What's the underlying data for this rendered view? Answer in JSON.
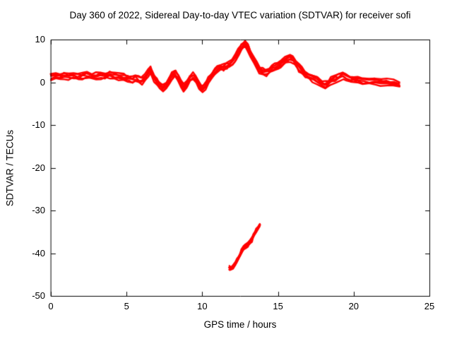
{
  "page": {
    "background": "#ffffff"
  },
  "chart_data": {
    "type": "scatter",
    "title": "Day 360 of 2022, Sidereal Day-to-day VTEC variation (SDTVAR) for receiver sofi",
    "xlabel": "GPS time / hours",
    "ylabel": "SDTVAR / TECUs",
    "xlim": [
      0,
      25
    ],
    "ylim": [
      -50,
      10
    ],
    "x_ticks": [
      0,
      5,
      10,
      15,
      20,
      25
    ],
    "y_ticks": [
      -50,
      -40,
      -30,
      -20,
      -10,
      0,
      10
    ],
    "grid": false,
    "legend": "none",
    "series_color": "#ff0000",
    "series": [
      {
        "name": "main-vtec-variation-band",
        "spread": 1.4,
        "points": [
          [
            0,
            1.2
          ],
          [
            0.3,
            1.5
          ],
          [
            0.6,
            1.3
          ],
          [
            0.9,
            1.6
          ],
          [
            1.2,
            1.4
          ],
          [
            1.5,
            1.6
          ],
          [
            1.8,
            1.3
          ],
          [
            2.1,
            1.5
          ],
          [
            2.4,
            1.7
          ],
          [
            2.7,
            1.4
          ],
          [
            3.0,
            1.5
          ],
          [
            3.3,
            1.7
          ],
          [
            3.6,
            1.6
          ],
          [
            3.9,
            1.8
          ],
          [
            4.2,
            1.5
          ],
          [
            4.5,
            1.3
          ],
          [
            4.8,
            1.1
          ],
          [
            5.1,
            0.8
          ],
          [
            5.4,
            0.6
          ],
          [
            5.6,
            1.0
          ],
          [
            5.8,
            0.5
          ],
          [
            6.0,
            0.3
          ],
          [
            6.2,
            1.2
          ],
          [
            6.4,
            2.2
          ],
          [
            6.55,
            3.0
          ],
          [
            6.7,
            2.2
          ],
          [
            6.85,
            1.0
          ],
          [
            7.0,
            0.2
          ],
          [
            7.2,
            -0.8
          ],
          [
            7.4,
            -1.5
          ],
          [
            7.6,
            -0.8
          ],
          [
            7.8,
            0.5
          ],
          [
            8.0,
            1.5
          ],
          [
            8.2,
            2.0
          ],
          [
            8.4,
            1.0
          ],
          [
            8.6,
            -0.3
          ],
          [
            8.8,
            -1.2
          ],
          [
            9.0,
            -0.5
          ],
          [
            9.2,
            0.8
          ],
          [
            9.4,
            1.5
          ],
          [
            9.6,
            0.6
          ],
          [
            9.8,
            -0.6
          ],
          [
            10.0,
            -1.6
          ],
          [
            10.2,
            -0.8
          ],
          [
            10.4,
            0.5
          ],
          [
            10.6,
            1.5
          ],
          [
            10.8,
            2.5
          ],
          [
            11.0,
            3.3
          ],
          [
            11.2,
            3.6
          ],
          [
            11.4,
            3.4
          ],
          [
            11.6,
            3.8
          ],
          [
            11.8,
            4.2
          ],
          [
            12.0,
            4.8
          ],
          [
            12.2,
            5.8
          ],
          [
            12.4,
            7.0
          ],
          [
            12.6,
            8.2
          ],
          [
            12.8,
            9.0
          ],
          [
            13.0,
            8.3
          ],
          [
            13.2,
            6.8
          ],
          [
            13.4,
            5.2
          ],
          [
            13.6,
            3.8
          ],
          [
            13.8,
            3.0
          ],
          [
            14.0,
            2.6
          ],
          [
            14.2,
            2.4
          ],
          [
            14.4,
            2.8
          ],
          [
            14.6,
            3.2
          ],
          [
            14.8,
            3.6
          ],
          [
            15.0,
            4.0
          ],
          [
            15.2,
            4.4
          ],
          [
            15.5,
            5.0
          ],
          [
            15.8,
            5.6
          ],
          [
            16.0,
            5.2
          ],
          [
            16.2,
            4.4
          ],
          [
            16.4,
            3.4
          ],
          [
            16.6,
            2.6
          ],
          [
            16.8,
            2.0
          ],
          [
            17.0,
            1.5
          ],
          [
            17.3,
            1.0
          ],
          [
            17.6,
            0.4
          ],
          [
            17.9,
            -0.2
          ],
          [
            18.1,
            -0.6
          ],
          [
            18.3,
            -0.2
          ],
          [
            18.5,
            0.4
          ],
          [
            18.8,
            0.9
          ],
          [
            19.0,
            1.2
          ],
          [
            19.3,
            1.6
          ],
          [
            19.5,
            1.2
          ],
          [
            19.8,
            0.8
          ],
          [
            20.0,
            0.6
          ],
          [
            20.3,
            0.5
          ],
          [
            20.6,
            0.4
          ],
          [
            21.0,
            0.3
          ],
          [
            21.4,
            0.2
          ],
          [
            21.8,
            0.1
          ],
          [
            22.2,
            -0.1
          ],
          [
            22.6,
            -0.3
          ],
          [
            23.0,
            -0.5
          ]
        ]
      },
      {
        "name": "outlier-segment",
        "spread": 0.8,
        "points": [
          [
            11.8,
            -43.4
          ],
          [
            11.9,
            -43.6
          ],
          [
            12.0,
            -43.3
          ],
          [
            12.15,
            -42.6
          ],
          [
            12.3,
            -41.8
          ],
          [
            12.45,
            -40.8
          ],
          [
            12.6,
            -39.6
          ],
          [
            12.7,
            -38.8
          ],
          [
            12.85,
            -38.3
          ],
          [
            13.0,
            -38.0
          ],
          [
            13.1,
            -37.6
          ],
          [
            13.25,
            -36.8
          ],
          [
            13.4,
            -35.8
          ],
          [
            13.55,
            -34.8
          ],
          [
            13.7,
            -34.0
          ],
          [
            13.8,
            -33.4
          ]
        ]
      }
    ]
  }
}
